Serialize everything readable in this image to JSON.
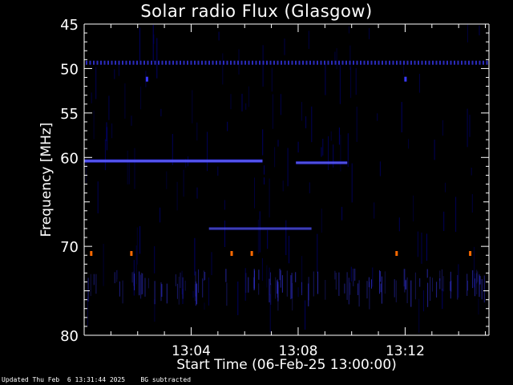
{
  "chart_data": {
    "type": "heatmap",
    "title": "Solar radio Flux (Glasgow)",
    "xlabel": "Start Time (06-Feb-25 13:00:00)",
    "ylabel": "Frequency [MHz]",
    "xlim": [
      "13:00:00",
      "13:15:08"
    ],
    "ylim": [
      45,
      80
    ],
    "y_inverted": true,
    "x_ticks": [
      "13:04",
      "13:08",
      "13:12"
    ],
    "y_ticks": [
      45,
      50,
      55,
      60,
      70,
      80
    ],
    "background": "#000000",
    "colors": {
      "axis": "#ffffff",
      "low": "#0000aa",
      "mid": "#3a3aff",
      "high": "#ff6a00"
    },
    "features": [
      {
        "kind": "band",
        "freq": 49.3,
        "start": "13:00:00",
        "end": "13:15:08",
        "intensity": 0.75,
        "dotted": true
      },
      {
        "kind": "band",
        "freq": 60.4,
        "start": "13:00:00",
        "end": "13:06:40",
        "intensity": 0.8
      },
      {
        "kind": "band",
        "freq": 60.6,
        "start": "13:07:55",
        "end": "13:09:50",
        "intensity": 0.65
      },
      {
        "kind": "band",
        "freq": 68.0,
        "start": "13:04:40",
        "end": "13:08:30",
        "intensity": 0.45
      },
      {
        "kind": "spot",
        "freq": 51.2,
        "time": "13:02:20",
        "intensity": 0.6
      },
      {
        "kind": "spot",
        "freq": 51.2,
        "time": "13:12:00",
        "intensity": 0.6
      },
      {
        "kind": "spot",
        "freq": 70.8,
        "time": "13:00:15",
        "intensity": 1.0
      },
      {
        "kind": "spot",
        "freq": 70.8,
        "time": "13:01:45",
        "intensity": 1.0
      },
      {
        "kind": "spot",
        "freq": 70.8,
        "time": "13:05:30",
        "intensity": 1.0
      },
      {
        "kind": "spot",
        "freq": 70.8,
        "time": "13:06:15",
        "intensity": 1.0
      },
      {
        "kind": "spot",
        "freq": 70.8,
        "time": "13:11:40",
        "intensity": 1.0
      },
      {
        "kind": "spot",
        "freq": 70.8,
        "time": "13:14:25",
        "intensity": 1.0
      }
    ]
  },
  "footer": {
    "updated": "Updated Thu Feb  6 13:31:44 2025",
    "note": "BG subtracted"
  }
}
